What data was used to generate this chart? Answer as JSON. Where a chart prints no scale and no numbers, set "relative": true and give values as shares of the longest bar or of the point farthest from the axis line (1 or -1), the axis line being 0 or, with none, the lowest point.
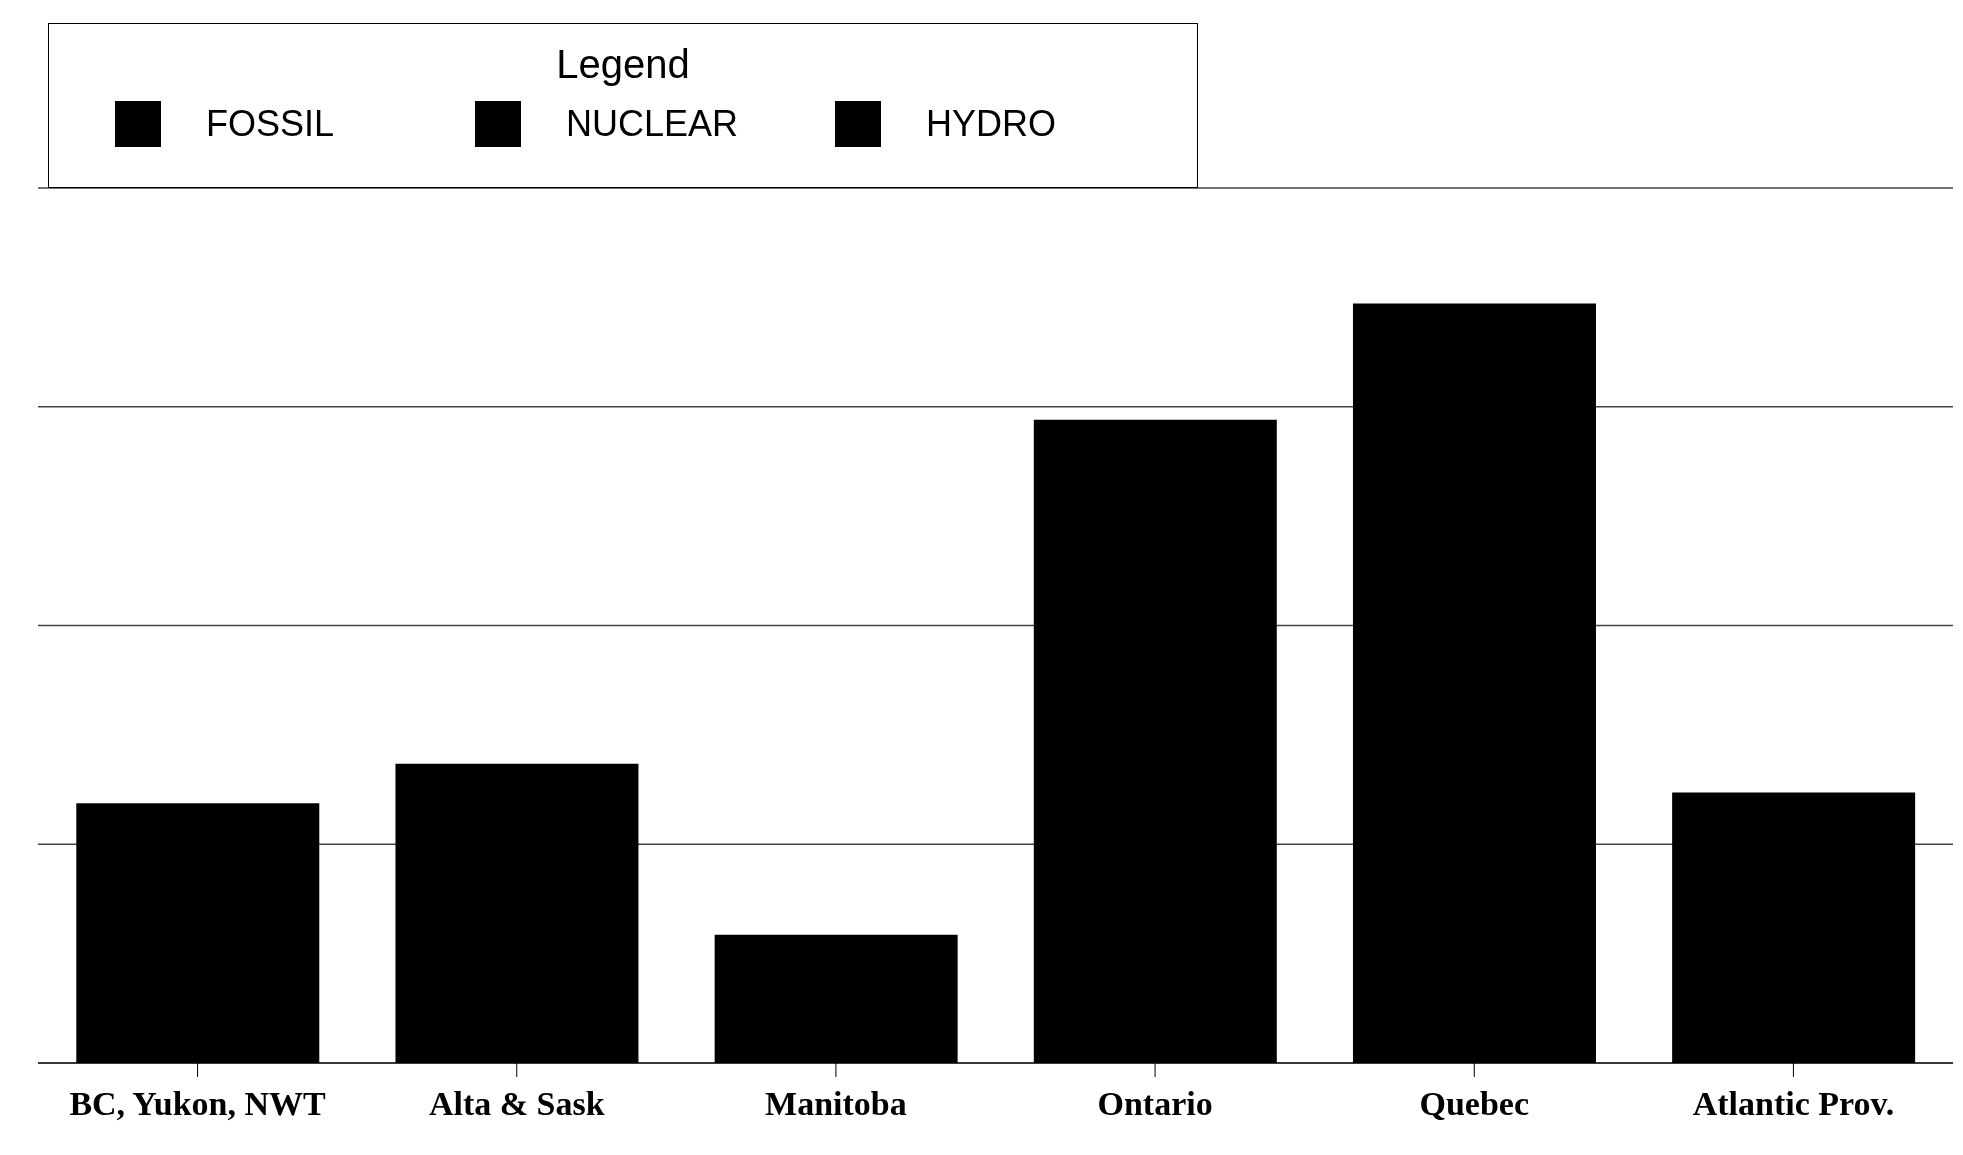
{
  "chart_data": {
    "type": "bar",
    "relative": true,
    "legend_title": "Legend",
    "legend": "top left",
    "grid": "y",
    "categories": [
      "BC, Yukon, NWT",
      "Alta & Sask",
      "Manitoba",
      "Ontario",
      "Quebec",
      "Atlantic Prov."
    ],
    "series": [
      {
        "color": "#000000",
        "values": [
          0.342,
          0.394,
          0.169,
          0.847,
          1,
          0.356
        ]
      },
      {
        "name": "FOSSIL",
        "color": "#000000",
        "values": [
          null,
          null,
          null,
          null,
          null,
          null
        ]
      },
      {
        "name": "NUCLEAR",
        "color": "#000000",
        "values": [
          null,
          null,
          null,
          null,
          null,
          null
        ]
      },
      {
        "name": "HYDRO",
        "color": "#000000",
        "values": [
          null,
          null,
          null,
          null,
          null,
          null
        ]
      }
    ]
  }
}
